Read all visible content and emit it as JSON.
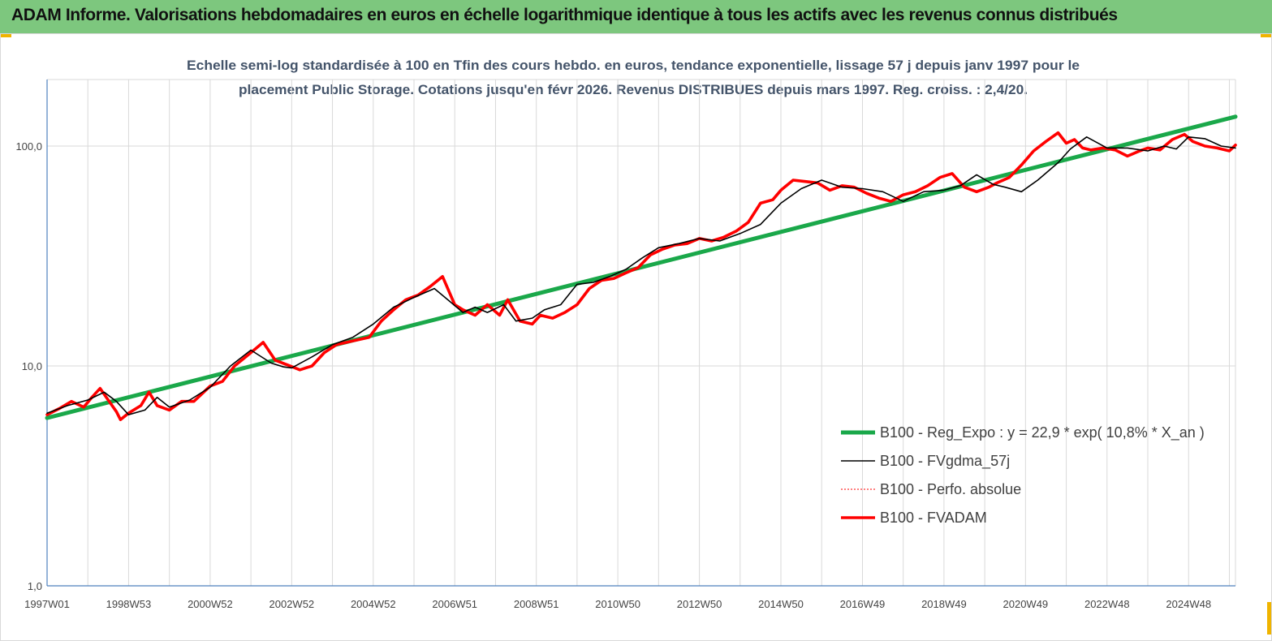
{
  "header": {
    "title": "ADAM Informe. Valorisations hebdomadaires en euros en échelle logarithmique identique à tous les actifs avec les revenus connus distribués"
  },
  "chart_data": {
    "type": "line",
    "title_line1": "Echelle semi-log standardisée à 100 en Tfin des cours hebdo. en euros, tendance exponentielle, lissage 57 j depuis janv 1997 pour le",
    "title_line2": "placement Public Storage. Cotations jusqu'en févr 2026. Revenus DISTRIBUES depuis mars 1997. Reg. croiss. : 2,4/20.",
    "y_scale": "log",
    "ylim": [
      1,
      180
    ],
    "y_ticks": [
      {
        "value": 1,
        "label": "1,0"
      },
      {
        "value": 10,
        "label": "10,0"
      },
      {
        "value": 100,
        "label": "100,0"
      }
    ],
    "xlim": [
      1997.0,
      2026.15
    ],
    "x_ticks": [
      {
        "value": 1997.0,
        "label": "1997W01"
      },
      {
        "value": 1999.0,
        "label": "1998W53"
      },
      {
        "value": 2001.0,
        "label": "2000W52"
      },
      {
        "value": 2003.0,
        "label": "2002W52"
      },
      {
        "value": 2005.0,
        "label": "2004W52"
      },
      {
        "value": 2007.0,
        "label": "2006W51"
      },
      {
        "value": 2009.0,
        "label": "2008W51"
      },
      {
        "value": 2011.0,
        "label": "2010W50"
      },
      {
        "value": 2013.0,
        "label": "2012W50"
      },
      {
        "value": 2015.0,
        "label": "2014W50"
      },
      {
        "value": 2017.0,
        "label": "2016W49"
      },
      {
        "value": 2019.0,
        "label": "2018W49"
      },
      {
        "value": 2021.0,
        "label": "2020W49"
      },
      {
        "value": 2023.0,
        "label": "2022W48"
      },
      {
        "value": 2025.0,
        "label": "2024W48"
      }
    ],
    "grid": "vertical and horizontal",
    "legend_position": "bottom-right",
    "colors": {
      "regression": "#1aa84a",
      "smoothed": "#000000",
      "perfo": "#ff0000",
      "fvadam": "#ff0000",
      "axis": "#4f81bd",
      "grid": "#d9d9d9"
    },
    "series": [
      {
        "name": "B100 - Reg_Expo : y = 22,9 * exp( 10,8% *  X_an )",
        "key": "regression",
        "x": [
          1997.0,
          2026.15
        ],
        "values": [
          5.8,
          136
        ]
      },
      {
        "name": "B100 - FVgdma_57j",
        "key": "smoothed",
        "x": [
          1997.0,
          1997.5,
          1998.0,
          1998.4,
          1998.7,
          1999.0,
          1999.4,
          1999.7,
          2000.0,
          2000.5,
          2001.0,
          2001.5,
          2002.0,
          2002.5,
          2002.8,
          2003.0,
          2003.5,
          2004.0,
          2004.5,
          2005.0,
          2005.5,
          2006.0,
          2006.5,
          2006.9,
          2007.2,
          2007.5,
          2007.8,
          2008.2,
          2008.5,
          2008.9,
          2009.2,
          2009.6,
          2010.0,
          2010.4,
          2010.8,
          2011.2,
          2011.6,
          2012.0,
          2012.5,
          2013.0,
          2013.5,
          2014.0,
          2014.5,
          2015.0,
          2015.5,
          2016.0,
          2016.5,
          2017.0,
          2017.5,
          2018.0,
          2018.5,
          2019.0,
          2019.4,
          2019.8,
          2020.2,
          2020.5,
          2020.9,
          2021.3,
          2021.8,
          2022.1,
          2022.5,
          2023.0,
          2023.5,
          2024.0,
          2024.4,
          2024.7,
          2025.0,
          2025.4,
          2025.8,
          2026.15
        ],
        "values": [
          6.1,
          6.6,
          7.0,
          7.6,
          6.9,
          6.0,
          6.3,
          7.2,
          6.5,
          7.0,
          8.0,
          10.0,
          11.8,
          10.3,
          9.9,
          9.8,
          11.0,
          12.5,
          13.5,
          15.5,
          18.5,
          20.5,
          22.5,
          19.5,
          17.5,
          18.5,
          17.5,
          19.0,
          16.0,
          16.5,
          18.0,
          19.0,
          23.5,
          24.0,
          25.5,
          27.5,
          31.0,
          34.5,
          36.0,
          38.0,
          37.0,
          40.0,
          44.0,
          55.0,
          64.0,
          70.0,
          65.0,
          64.0,
          62.0,
          56.0,
          62.0,
          63.0,
          66.0,
          74.0,
          67.0,
          65.0,
          62.0,
          70.0,
          84.0,
          97.0,
          110.0,
          98.0,
          98.0,
          95.0,
          100.0,
          97.0,
          110.0,
          108.0,
          100.0,
          98.0
        ]
      },
      {
        "name": "B100 - Perfo. absolue",
        "key": "perfo",
        "x": [],
        "values": []
      },
      {
        "name": "B100 - FVADAM",
        "key": "fvadam",
        "x": [
          1997.0,
          1997.3,
          1997.6,
          1997.9,
          1998.1,
          1998.3,
          1998.5,
          1998.7,
          1998.8,
          1999.0,
          1999.3,
          1999.5,
          1999.7,
          2000.0,
          2000.3,
          2000.6,
          2001.0,
          2001.3,
          2001.6,
          2002.0,
          2002.3,
          2002.6,
          2002.9,
          2003.2,
          2003.5,
          2003.8,
          2004.1,
          2004.5,
          2004.9,
          2005.2,
          2005.5,
          2005.8,
          2006.1,
          2006.4,
          2006.7,
          2007.0,
          2007.2,
          2007.5,
          2007.8,
          2008.1,
          2008.3,
          2008.6,
          2008.9,
          2009.1,
          2009.4,
          2009.7,
          2010.0,
          2010.3,
          2010.6,
          2010.9,
          2011.2,
          2011.5,
          2011.8,
          2012.1,
          2012.4,
          2012.7,
          2013.0,
          2013.3,
          2013.6,
          2013.9,
          2014.2,
          2014.5,
          2014.8,
          2015.0,
          2015.3,
          2015.6,
          2015.9,
          2016.2,
          2016.5,
          2016.8,
          2017.1,
          2017.4,
          2017.7,
          2018.0,
          2018.3,
          2018.6,
          2018.9,
          2019.2,
          2019.5,
          2019.8,
          2020.1,
          2020.3,
          2020.6,
          2020.9,
          2021.2,
          2021.5,
          2021.8,
          2022.0,
          2022.2,
          2022.4,
          2022.6,
          2022.9,
          2023.2,
          2023.5,
          2023.8,
          2024.0,
          2024.3,
          2024.6,
          2024.9,
          2025.1,
          2025.4,
          2025.7,
          2026.0,
          2026.15
        ],
        "values": [
          6.0,
          6.4,
          6.9,
          6.5,
          7.2,
          7.9,
          7.0,
          6.2,
          5.7,
          6.1,
          6.6,
          7.6,
          6.6,
          6.3,
          6.9,
          6.9,
          8.1,
          8.5,
          10.0,
          11.5,
          12.8,
          10.6,
          10.1,
          9.6,
          10.0,
          11.5,
          12.5,
          13.0,
          13.5,
          16.0,
          18.0,
          20.0,
          21.0,
          23.0,
          25.5,
          19.0,
          18.0,
          17.0,
          19.0,
          17.0,
          20.0,
          16.0,
          15.5,
          17.0,
          16.5,
          17.5,
          19.0,
          22.5,
          24.5,
          25.0,
          26.5,
          28.0,
          32.0,
          34.0,
          35.5,
          36.0,
          38.0,
          37.0,
          38.5,
          41.0,
          45.0,
          55.0,
          57.0,
          63.0,
          70.0,
          69.0,
          68.0,
          63.0,
          66.0,
          65.0,
          61.0,
          58.0,
          56.0,
          60.0,
          62.0,
          66.0,
          72.0,
          75.0,
          65.0,
          62.0,
          65.0,
          68.0,
          72.0,
          82.0,
          95.0,
          105.0,
          115.0,
          103.0,
          107.0,
          98.0,
          96.0,
          98.0,
          96.0,
          90.0,
          95.0,
          98.0,
          96.0,
          107.0,
          113.0,
          105.0,
          100.0,
          98.0,
          95.0,
          101.0
        ]
      }
    ]
  }
}
